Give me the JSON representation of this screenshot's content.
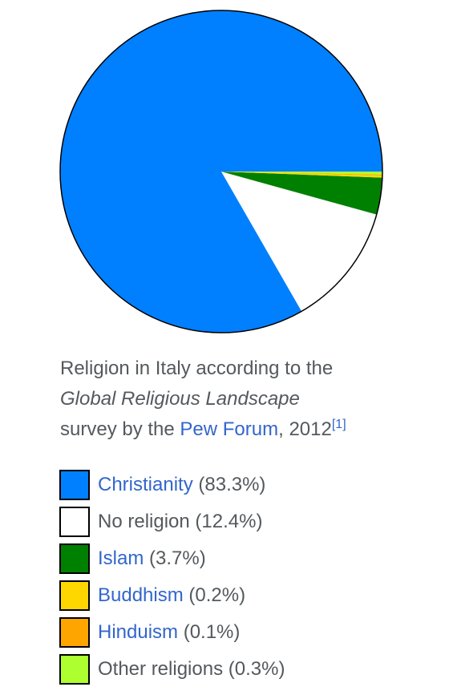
{
  "chart_data": {
    "type": "pie",
    "slices": [
      {
        "label": "Christianity",
        "value": 83.3,
        "value_text": "(83.3%)",
        "color": "#0080ff",
        "link": true
      },
      {
        "label": "No religion",
        "value": 12.4,
        "value_text": "(12.4%)",
        "color": "#ffffff",
        "link": false
      },
      {
        "label": "Islam",
        "value": 3.7,
        "value_text": "(3.7%)",
        "color": "#008000",
        "link": true
      },
      {
        "label": "Buddhism",
        "value": 0.2,
        "value_text": "(0.2%)",
        "color": "#ffd700",
        "link": true
      },
      {
        "label": "Hinduism",
        "value": 0.1,
        "value_text": "(0.1%)",
        "color": "#ffa500",
        "link": true
      },
      {
        "label": "Other religions",
        "value": 0.3,
        "value_text": "(0.3%)",
        "color": "#adff2f",
        "link": false
      }
    ],
    "start": "3 o'clock",
    "direction": "counterclockwise"
  },
  "caption": {
    "line1": "Religion in Italy according to the",
    "line2_italic": "Global Religious Landscape",
    "line3_prefix": "survey by the ",
    "line3_link": "Pew Forum",
    "line3_suffix": ", 2012",
    "reference": "[1]"
  }
}
